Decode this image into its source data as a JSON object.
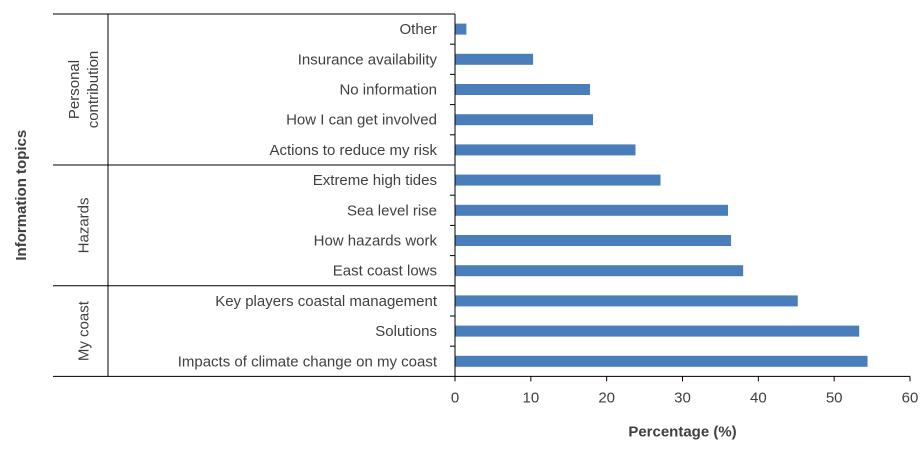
{
  "chart_data": {
    "type": "bar",
    "orientation": "horizontal",
    "xlabel": "Percentage (%)",
    "ylabel": "Information topics",
    "xlim": [
      0,
      60
    ],
    "xticks": [
      "0",
      "10",
      "20",
      "30",
      "40",
      "50",
      "60"
    ],
    "grid": false,
    "legend": "none",
    "bar_color": "#4a7ebb",
    "groups": [
      {
        "name": "Personal contribution",
        "lines": [
          "Personal",
          "contribution"
        ],
        "categories": [
          "Other",
          "Insurance availability",
          "No information",
          "How I can get involved",
          "Actions to reduce my risk"
        ],
        "values": [
          1.5,
          10.3,
          17.8,
          18.2,
          23.8
        ]
      },
      {
        "name": "Hazards",
        "lines": [
          "Hazards"
        ],
        "categories": [
          "Extreme high tides",
          "Sea level rise",
          "How hazards work",
          "East coast lows"
        ],
        "values": [
          27.1,
          36.0,
          36.4,
          38.0
        ]
      },
      {
        "name": "My coast",
        "lines": [
          "My coast"
        ],
        "categories": [
          "Key players coastal management",
          "Solutions",
          "Impacts of climate change on my coast"
        ],
        "values": [
          45.2,
          53.3,
          54.4
        ]
      }
    ]
  }
}
